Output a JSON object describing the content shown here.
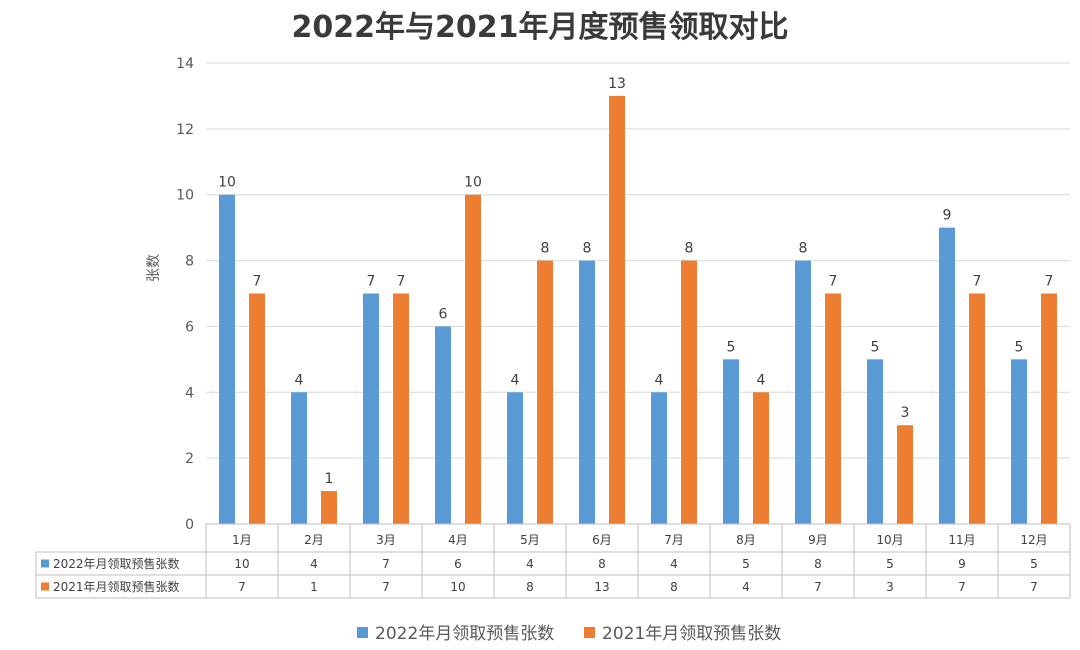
{
  "colors": {
    "s2022": "#5b9bd5",
    "s2021": "#ed7d31",
    "grid": "#d9d9d9",
    "axis": "#bfbfbf"
  },
  "chart_data": {
    "type": "bar",
    "title": "2022年与2021年月度预售领取对比",
    "ylabel": "张数",
    "xlabel": "",
    "ylim": [
      0,
      14
    ],
    "yticks": [
      0,
      2,
      4,
      6,
      8,
      10,
      12,
      14
    ],
    "grid": true,
    "legend": "bottom",
    "categories": [
      "1月",
      "2月",
      "3月",
      "4月",
      "5月",
      "6月",
      "7月",
      "8月",
      "9月",
      "10月",
      "11月",
      "12月"
    ],
    "series": [
      {
        "name": "2022年月领取预售张数",
        "values": [
          10,
          4,
          7,
          6,
          4,
          8,
          4,
          5,
          8,
          5,
          9,
          5
        ]
      },
      {
        "name": "2021年月领取预售张数",
        "values": [
          7,
          1,
          7,
          10,
          8,
          13,
          8,
          4,
          7,
          3,
          7,
          7
        ]
      }
    ],
    "data_table": true
  }
}
